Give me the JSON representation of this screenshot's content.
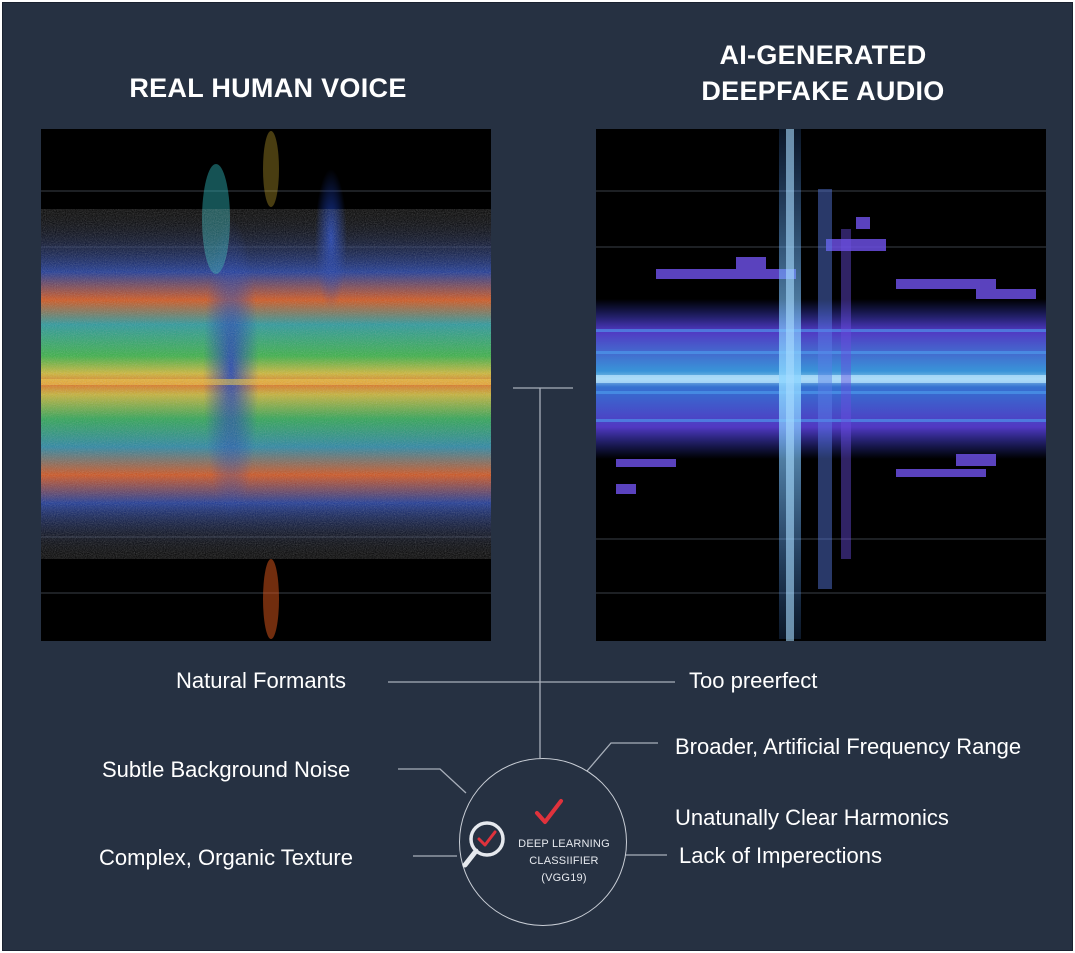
{
  "headings": {
    "left": "REAL HUMAN VOICE",
    "right_line1": "AI-GENERATED",
    "right_line2": "DEEPFAKE AUDIO"
  },
  "callouts": {
    "natural_formants": "Natural Formants",
    "too_perfect": "Too preerfect",
    "background_noise": "Subtle Background Noise",
    "organic_texture": "Complex, Organic Texture",
    "frequency_range": "Broader, Artificial Frequency Range",
    "clear_harmonics": "Unatunally Clear Harmonics",
    "imperfections": "Lack of Imperections"
  },
  "classifier": {
    "line1": "DEEP LEARNING",
    "line2": "CLASSIIFIER",
    "line3": "(VGG19)",
    "icons": [
      "magnifier-icon",
      "checkmark-icon"
    ]
  },
  "colors": {
    "background": "#263142",
    "checkmark": "#e0323c",
    "connector": "#a8afba"
  }
}
